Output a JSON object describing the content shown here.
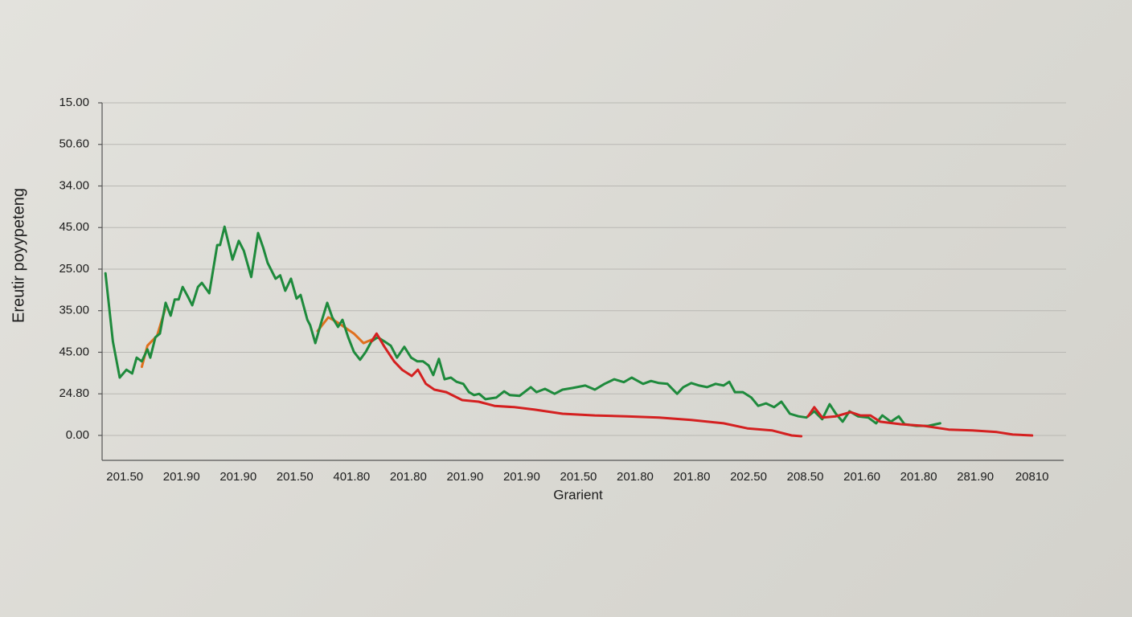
{
  "chart_data": {
    "type": "line",
    "x_label": "Grarient",
    "y_label": "Ereutir poyypeteng",
    "xlim": [
      -0.4,
      16.6
    ],
    "ylim": [
      -0.6,
      8
    ],
    "grid": true,
    "xticks": [
      {
        "value": 0,
        "label": "201.50"
      },
      {
        "value": 1,
        "label": "201.90"
      },
      {
        "value": 2,
        "label": "201.90"
      },
      {
        "value": 3,
        "label": "201.50"
      },
      {
        "value": 4,
        "label": "401.80"
      },
      {
        "value": 5,
        "label": "201.80"
      },
      {
        "value": 6,
        "label": "201.90"
      },
      {
        "value": 7,
        "label": "201.90"
      },
      {
        "value": 8,
        "label": "201.50"
      },
      {
        "value": 9,
        "label": "201.80"
      },
      {
        "value": 10,
        "label": "201.80"
      },
      {
        "value": 11,
        "label": "202.50"
      },
      {
        "value": 12,
        "label": "208.50"
      },
      {
        "value": 13,
        "label": "201.60"
      },
      {
        "value": 14,
        "label": "201.80"
      },
      {
        "value": 15,
        "label": "281.90"
      },
      {
        "value": 16,
        "label": "20810"
      }
    ],
    "yticks": [
      {
        "value": 8,
        "label": "15.00"
      },
      {
        "value": 7,
        "label": "50.60"
      },
      {
        "value": 6,
        "label": "34.00"
      },
      {
        "value": 5,
        "label": "45.00"
      },
      {
        "value": 4,
        "label": "25.00"
      },
      {
        "value": 3,
        "label": "35.00"
      },
      {
        "value": 2,
        "label": "45.00"
      },
      {
        "value": 1,
        "label": "24.80"
      },
      {
        "value": 0,
        "label": "0.00"
      }
    ],
    "series": [
      {
        "color": "#e0701e",
        "x": [
          0.3,
          0.4,
          0.57,
          0.71,
          null,
          3.4,
          3.59,
          3.76,
          4.04,
          4.21,
          4.35
        ],
        "values": [
          1.65,
          2.16,
          2.4,
          3.03,
          null,
          2.51,
          2.84,
          2.71,
          2.45,
          2.22,
          2.3
        ]
      },
      {
        "color": "#1e8a3c",
        "x": [
          -0.34,
          -0.21,
          -0.09,
          0.03,
          0.13,
          0.21,
          0.3,
          0.4,
          0.45,
          0.54,
          0.62,
          0.72,
          0.81,
          0.88,
          0.95,
          1.02,
          1.12,
          1.19,
          1.29,
          1.36,
          1.49,
          1.63,
          1.68,
          1.76,
          1.9,
          2.01,
          2.1,
          2.23,
          2.35,
          2.44,
          2.52,
          2.66,
          2.74,
          2.83,
          2.93,
          3.03,
          3.1,
          3.22,
          3.27,
          3.36,
          3.47,
          3.57,
          3.66,
          3.76,
          3.84,
          3.94,
          4.04,
          4.15,
          4.25,
          4.35,
          4.46,
          4.58,
          4.69,
          4.8,
          4.93,
          5.05,
          5.16,
          5.26,
          5.36,
          5.44,
          5.54,
          5.64,
          5.75,
          5.85,
          5.97,
          6.07,
          6.16,
          6.25,
          6.36,
          6.55,
          6.69,
          6.79,
          6.96,
          7.16,
          7.26,
          7.41,
          7.58,
          7.72,
          7.89,
          8.12,
          8.29,
          8.46,
          8.63,
          8.8,
          8.94,
          9.14,
          9.28,
          9.42,
          9.57,
          9.74,
          9.85,
          9.99,
          10.13,
          10.27,
          10.42,
          10.56,
          10.66,
          10.76,
          10.9,
          11.05,
          11.17,
          11.31,
          11.45,
          11.58,
          11.73,
          11.88,
          12.02,
          12.16,
          12.3,
          12.43,
          12.54,
          12.66,
          12.78,
          12.93,
          13.11,
          13.25,
          13.36,
          13.51,
          13.65,
          13.75,
          13.96,
          14.17,
          14.38
        ],
        "values": [
          3.9,
          2.26,
          1.39,
          1.58,
          1.49,
          1.87,
          1.78,
          2.07,
          1.87,
          2.36,
          2.45,
          3.19,
          2.88,
          3.27,
          3.27,
          3.57,
          3.32,
          3.13,
          3.57,
          3.67,
          3.42,
          4.58,
          4.58,
          5.02,
          4.23,
          4.68,
          4.44,
          3.81,
          4.87,
          4.52,
          4.15,
          3.77,
          3.85,
          3.48,
          3.77,
          3.29,
          3.38,
          2.78,
          2.65,
          2.22,
          2.74,
          3.19,
          2.84,
          2.61,
          2.78,
          2.36,
          2.01,
          1.82,
          2.01,
          2.26,
          2.36,
          2.26,
          2.16,
          1.87,
          2.13,
          1.87,
          1.78,
          1.78,
          1.68,
          1.45,
          1.84,
          1.35,
          1.39,
          1.29,
          1.24,
          1.04,
          0.97,
          1.0,
          0.87,
          0.91,
          1.06,
          0.97,
          0.95,
          1.16,
          1.04,
          1.12,
          1.0,
          1.1,
          1.14,
          1.2,
          1.1,
          1.24,
          1.35,
          1.28,
          1.39,
          1.24,
          1.31,
          1.26,
          1.24,
          1.0,
          1.16,
          1.26,
          1.2,
          1.16,
          1.24,
          1.2,
          1.29,
          1.04,
          1.04,
          0.91,
          0.71,
          0.77,
          0.68,
          0.81,
          0.52,
          0.46,
          0.43,
          0.58,
          0.39,
          0.75,
          0.52,
          0.33,
          0.58,
          0.46,
          0.43,
          0.29,
          0.48,
          0.33,
          0.46,
          0.27,
          0.23,
          0.23,
          0.29
        ]
      },
      {
        "color": "#d42020",
        "x": [
          4.35,
          4.44,
          4.58,
          4.75,
          4.89,
          5.06,
          5.17,
          5.31,
          5.46,
          5.67,
          5.95,
          6.24,
          6.52,
          6.87,
          7.23,
          7.72,
          8.29,
          8.85,
          9.42,
          9.99,
          10.56,
          10.98,
          11.41,
          11.76,
          11.93,
          null,
          12.05,
          12.16,
          12.3,
          12.54,
          12.8,
          12.97,
          13.15,
          13.32,
          13.68,
          14.1,
          14.53,
          14.95,
          15.38,
          15.66,
          16.0
        ],
        "values": [
          2.26,
          2.45,
          2.13,
          1.78,
          1.58,
          1.43,
          1.58,
          1.24,
          1.1,
          1.04,
          0.85,
          0.81,
          0.71,
          0.68,
          0.62,
          0.52,
          0.48,
          0.46,
          0.43,
          0.37,
          0.29,
          0.17,
          0.12,
          0.0,
          -0.02,
          null,
          0.46,
          0.68,
          0.43,
          0.46,
          0.56,
          0.48,
          0.48,
          0.33,
          0.27,
          0.23,
          0.14,
          0.12,
          0.08,
          0.02,
          0.0
        ]
      }
    ]
  }
}
